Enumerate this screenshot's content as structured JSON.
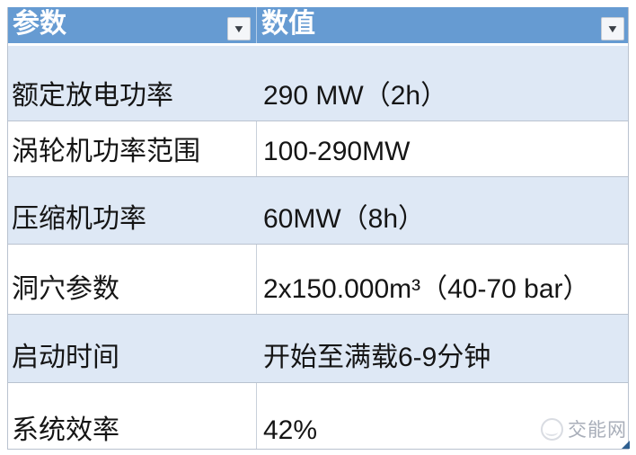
{
  "table": {
    "columns": [
      {
        "label": "参数"
      },
      {
        "label": "数值"
      }
    ],
    "rows": [
      {
        "param": "额定放电功率",
        "value": "290 MW（2h）"
      },
      {
        "param": "涡轮机功率范围",
        "value": "100-290MW"
      },
      {
        "param": "压缩机功率",
        "value": "60MW（8h）"
      },
      {
        "param": "洞穴参数",
        "value": "2x150.000m³（40-70 bar）"
      },
      {
        "param": "启动时间",
        "value": "开始至满载6-9分钟"
      },
      {
        "param": "系统效率",
        "value": "42%"
      }
    ]
  },
  "icons": {
    "filter_dropdown": "▼"
  },
  "watermark": {
    "text": "交能网"
  },
  "colors": {
    "header_bg": "#669bd2",
    "band_bg": "#dee8f5",
    "border": "#b9c2cf",
    "header_text": "#ffffff",
    "cell_text": "#151515",
    "watermark_text": "#a8aeb9",
    "handle": "#2e5f8f"
  }
}
